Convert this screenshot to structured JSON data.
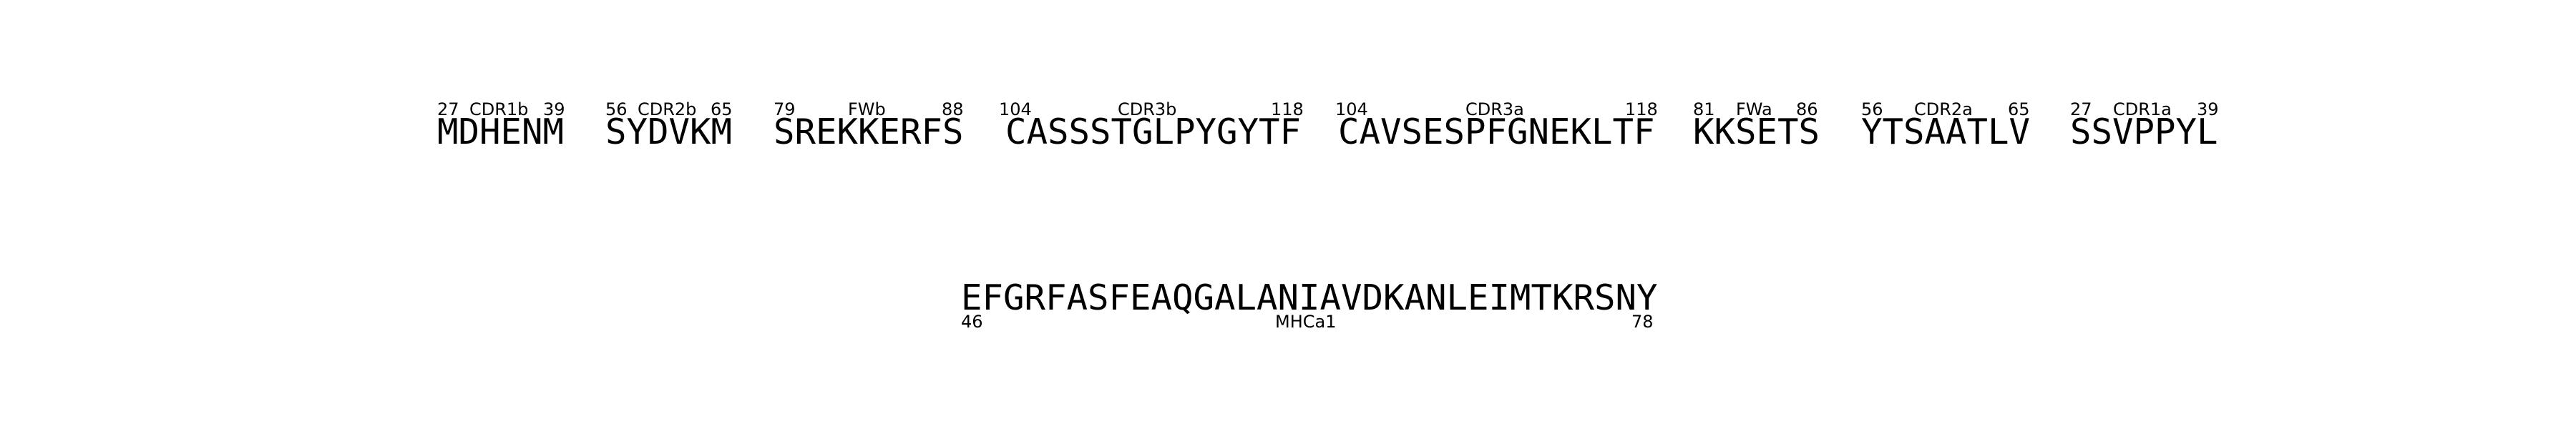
{
  "top_row": [
    {
      "seq": "MDHENM",
      "start": "27",
      "region": "CDR1b",
      "end": "39"
    },
    {
      "seq": "SYDVKM",
      "start": "56",
      "region": "CDR2b",
      "end": "65"
    },
    {
      "seq": "SREKKERFS",
      "start": "79",
      "region": "FWb",
      "end": "88"
    },
    {
      "seq": "CASSSTGLPYGYTF",
      "start": "104",
      "region": "CDR3b",
      "end": "118"
    },
    {
      "seq": "CAVSESPFGNEKLTF",
      "start": "104",
      "region": "CDR3a",
      "end": "118"
    },
    {
      "seq": "KKSETS",
      "start": "81",
      "region": "FWa",
      "end": "86"
    },
    {
      "seq": "YTSAATLV",
      "start": "56",
      "region": "CDR2a",
      "end": "65"
    },
    {
      "seq": "SSVPPYL",
      "start": "27",
      "region": "CDR1a",
      "end": "39"
    }
  ],
  "bottom_row": {
    "seq": "EFGRFASFEAQGALANIAVDKANLEIMTKRSNY",
    "start": "46",
    "region": "MHCa1",
    "end": "78"
  }
}
